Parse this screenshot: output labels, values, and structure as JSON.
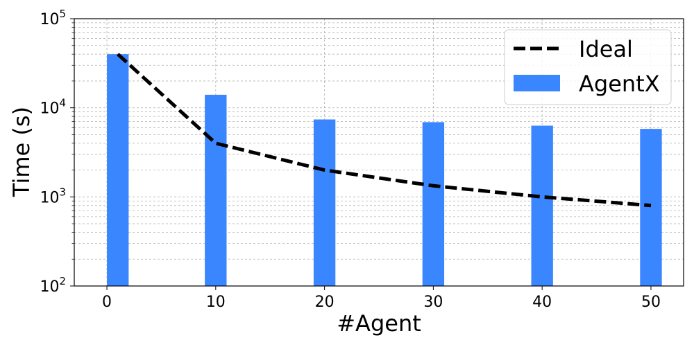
{
  "chart_data": {
    "type": "bar",
    "xlabel": "#Agent",
    "ylabel": "Time (s)",
    "yscale": "log",
    "ylim": [
      100,
      100000
    ],
    "xlim": [
      -3,
      53
    ],
    "xticks": [
      0,
      10,
      20,
      30,
      40,
      50
    ],
    "yticks": [
      {
        "value": 100,
        "base": "10",
        "exp": "2"
      },
      {
        "value": 1000,
        "base": "10",
        "exp": "3"
      },
      {
        "value": 10000,
        "base": "10",
        "exp": "4"
      },
      {
        "value": 100000,
        "base": "10",
        "exp": "5"
      }
    ],
    "grid": true,
    "legend_position": "top-right",
    "colors": {
      "bar": "#3a86ff",
      "line": "#000000"
    },
    "series": [
      {
        "name": "Ideal",
        "kind": "line",
        "style": "dashed",
        "x": [
          1,
          10,
          20,
          30,
          40,
          50
        ],
        "values": [
          40000,
          4000,
          2000,
          1333,
          1000,
          800
        ]
      },
      {
        "name": "AgentX",
        "kind": "bar",
        "x": [
          1,
          10,
          20,
          30,
          40,
          50
        ],
        "values": [
          40000,
          14000,
          7400,
          6900,
          6300,
          5800
        ]
      }
    ]
  }
}
